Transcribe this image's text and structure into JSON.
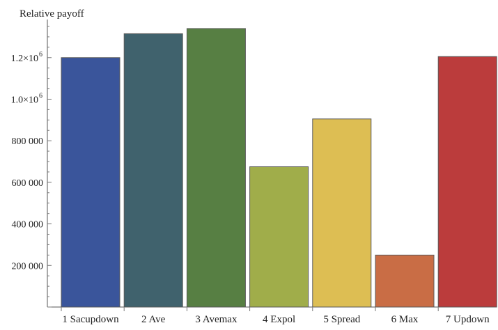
{
  "chart_data": {
    "type": "bar",
    "title": "",
    "xlabel": "",
    "ylabel": "Relative payoff",
    "categories": [
      "1 Sacupdown",
      "2 Ave",
      "3 Avemax",
      "4 Expol",
      "5 Spread",
      "6 Max",
      "7 Updown"
    ],
    "values": [
      1200000,
      1315000,
      1340000,
      675000,
      905000,
      250000,
      1205000
    ],
    "colors": [
      "#3a559b",
      "#40626d",
      "#577f43",
      "#a0ad4a",
      "#ddbe53",
      "#c96d45",
      "#bb3c3c"
    ],
    "ylim": [
      0,
      1360000
    ],
    "yticks": [
      {
        "value": 200000,
        "label": "200 000"
      },
      {
        "value": 400000,
        "label": "400 000"
      },
      {
        "value": 600000,
        "label": "600 000"
      },
      {
        "value": 800000,
        "label": "800 000"
      },
      {
        "value": 1000000,
        "label": "1.0×10",
        "exp": "6"
      },
      {
        "value": 1200000,
        "label": "1.2×10",
        "exp": "6"
      }
    ],
    "grid": false,
    "legend": "none"
  }
}
